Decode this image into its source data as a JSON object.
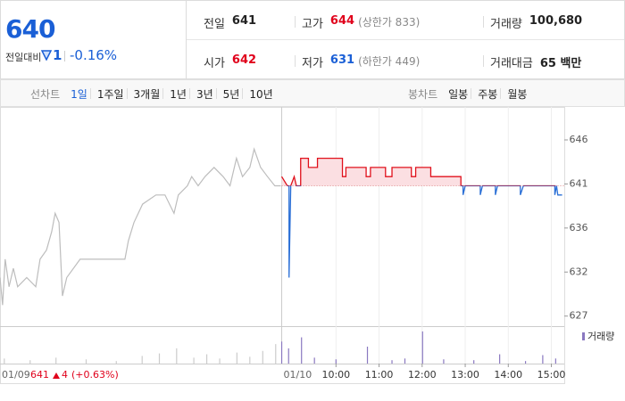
{
  "quote": {
    "price": 640,
    "change_label": "전일대비",
    "change": 1,
    "change_pct": "-0.16%",
    "color": "#1a5fd6"
  },
  "stats": [
    {
      "label": "전일",
      "value": 641,
      "color": "#222"
    },
    {
      "label": "고가",
      "value": 644,
      "note": "(상한가 833)",
      "color": "#e0001b"
    },
    {
      "label": "거래량",
      "value": "100,680",
      "color": "#222"
    },
    {
      "label": "시가",
      "value": 642,
      "color": "#e0001b"
    },
    {
      "label": "저가",
      "value": 631,
      "note": "(하한가 449)",
      "color": "#1a5fd6"
    },
    {
      "label": "거래대금",
      "value": "65 백만",
      "color": "#222"
    }
  ],
  "line_tabs": {
    "label": "선차트",
    "items": [
      "1일",
      "1주일",
      "3개월",
      "1년",
      "3년",
      "5년",
      "10년"
    ]
  },
  "candle_tabs": {
    "label": "봉차트",
    "items": [
      "일봉",
      "주봉",
      "월봉"
    ]
  },
  "chart_data": {
    "type": "line",
    "ylim": [
      625.8,
      649.4
    ],
    "yticks": [
      {
        "value": 646.0,
        "label": "646"
      },
      {
        "value": 641.2,
        "label": "641"
      },
      {
        "value": 636.4,
        "label": "636"
      },
      {
        "value": 631.6,
        "label": "632"
      },
      {
        "value": 626.8,
        "label": "627"
      }
    ],
    "xlim": [
      2.2,
      15.3
    ],
    "xticks": [
      {
        "value": 10,
        "label": "10:00"
      },
      {
        "value": 11,
        "label": "11:00"
      },
      {
        "value": 12,
        "label": "12:00"
      },
      {
        "value": 13,
        "label": "13:00"
      },
      {
        "value": 14,
        "label": "14:00"
      },
      {
        "value": 15,
        "label": "15:00"
      }
    ],
    "day_labels": [
      {
        "value": 2.2,
        "label": "01/09"
      },
      {
        "value": 8.74,
        "label": "01/10"
      }
    ],
    "prev_day_summary": {
      "close": 641,
      "change": 4,
      "change_pct": "(+0.63%)",
      "color": "#e0001b"
    },
    "baseline": 641,
    "prev_series": {
      "color": "#bdbdbd",
      "x": [
        2.2,
        2.26,
        2.32,
        2.41,
        2.51,
        2.61,
        2.82,
        3.03,
        3.13,
        3.28,
        3.4,
        3.48,
        3.57,
        3.65,
        3.75,
        4.06,
        4.48,
        5.1,
        5.18,
        5.31,
        5.41,
        5.51,
        5.82,
        6.03,
        6.24,
        6.34,
        6.55,
        6.65,
        6.8,
        6.96,
        7.17,
        7.38,
        7.54,
        7.69,
        7.83,
        8.0,
        8.1,
        8.25,
        8.41,
        8.58,
        8.72
      ],
      "values": [
        631,
        628,
        633,
        630,
        632,
        630,
        631,
        630,
        633,
        634,
        636,
        638,
        637,
        629,
        631,
        633,
        633,
        633,
        635,
        637,
        638,
        639,
        640,
        640,
        638,
        640,
        641,
        642,
        641,
        642,
        643,
        642,
        641,
        644,
        642,
        643,
        645,
        643,
        642,
        641,
        641
      ]
    },
    "series": {
      "color_up": "#e0101b",
      "color_down": "#2a6fd6",
      "fill_up": "#fbdfe2",
      "x": [
        8.74,
        8.87,
        8.91,
        8.91,
        8.95,
        9.03,
        9.08,
        9.18,
        9.18,
        9.36,
        9.36,
        9.57,
        9.57,
        10.15,
        10.15,
        10.23,
        10.23,
        10.7,
        10.7,
        10.8,
        10.8,
        11.15,
        11.15,
        11.3,
        11.3,
        11.75,
        11.75,
        11.85,
        11.85,
        12.2,
        12.2,
        12.9,
        12.9,
        12.95,
        12.95,
        13.0,
        13.35,
        13.35,
        13.4,
        13.7,
        13.7,
        13.75,
        14.28,
        14.28,
        14.35,
        15.08,
        15.08,
        15.12,
        15.15,
        15.25
      ],
      "values": [
        642,
        641,
        641,
        631,
        641,
        642,
        641,
        641,
        644,
        644,
        643,
        643,
        644,
        644,
        642,
        642,
        643,
        643,
        642,
        642,
        643,
        643,
        642,
        642,
        643,
        643,
        642,
        642,
        643,
        643,
        642,
        642,
        641,
        641,
        640,
        641,
        641,
        640,
        641,
        641,
        640,
        641,
        641,
        640,
        641,
        641,
        640,
        641,
        640,
        640
      ]
    },
    "volume": {
      "legend": "거래량",
      "ylim": [
        0,
        4000
      ],
      "prev": {
        "color": "#cccccc",
        "x": [
          2.3,
          2.9,
          3.5,
          4.2,
          4.9,
          5.5,
          5.9,
          6.3,
          6.7,
          7.0,
          7.3,
          7.7,
          8.0,
          8.3,
          8.6
        ],
        "values": [
          600,
          400,
          700,
          500,
          300,
          900,
          1200,
          1800,
          700,
          1100,
          600,
          1300,
          800,
          1500,
          2300
        ]
      },
      "today": {
        "name": "거래량",
        "color": "#8a78c0",
        "x": [
          8.74,
          8.9,
          9.2,
          9.5,
          10.0,
          10.73,
          11.3,
          11.6,
          12.01,
          12.5,
          13.2,
          13.8,
          14.4,
          14.8,
          15.1
        ],
        "values": [
          2600,
          1800,
          3100,
          700,
          500,
          2000,
          400,
          600,
          3800,
          500,
          400,
          1100,
          300,
          1000,
          600
        ]
      }
    }
  }
}
